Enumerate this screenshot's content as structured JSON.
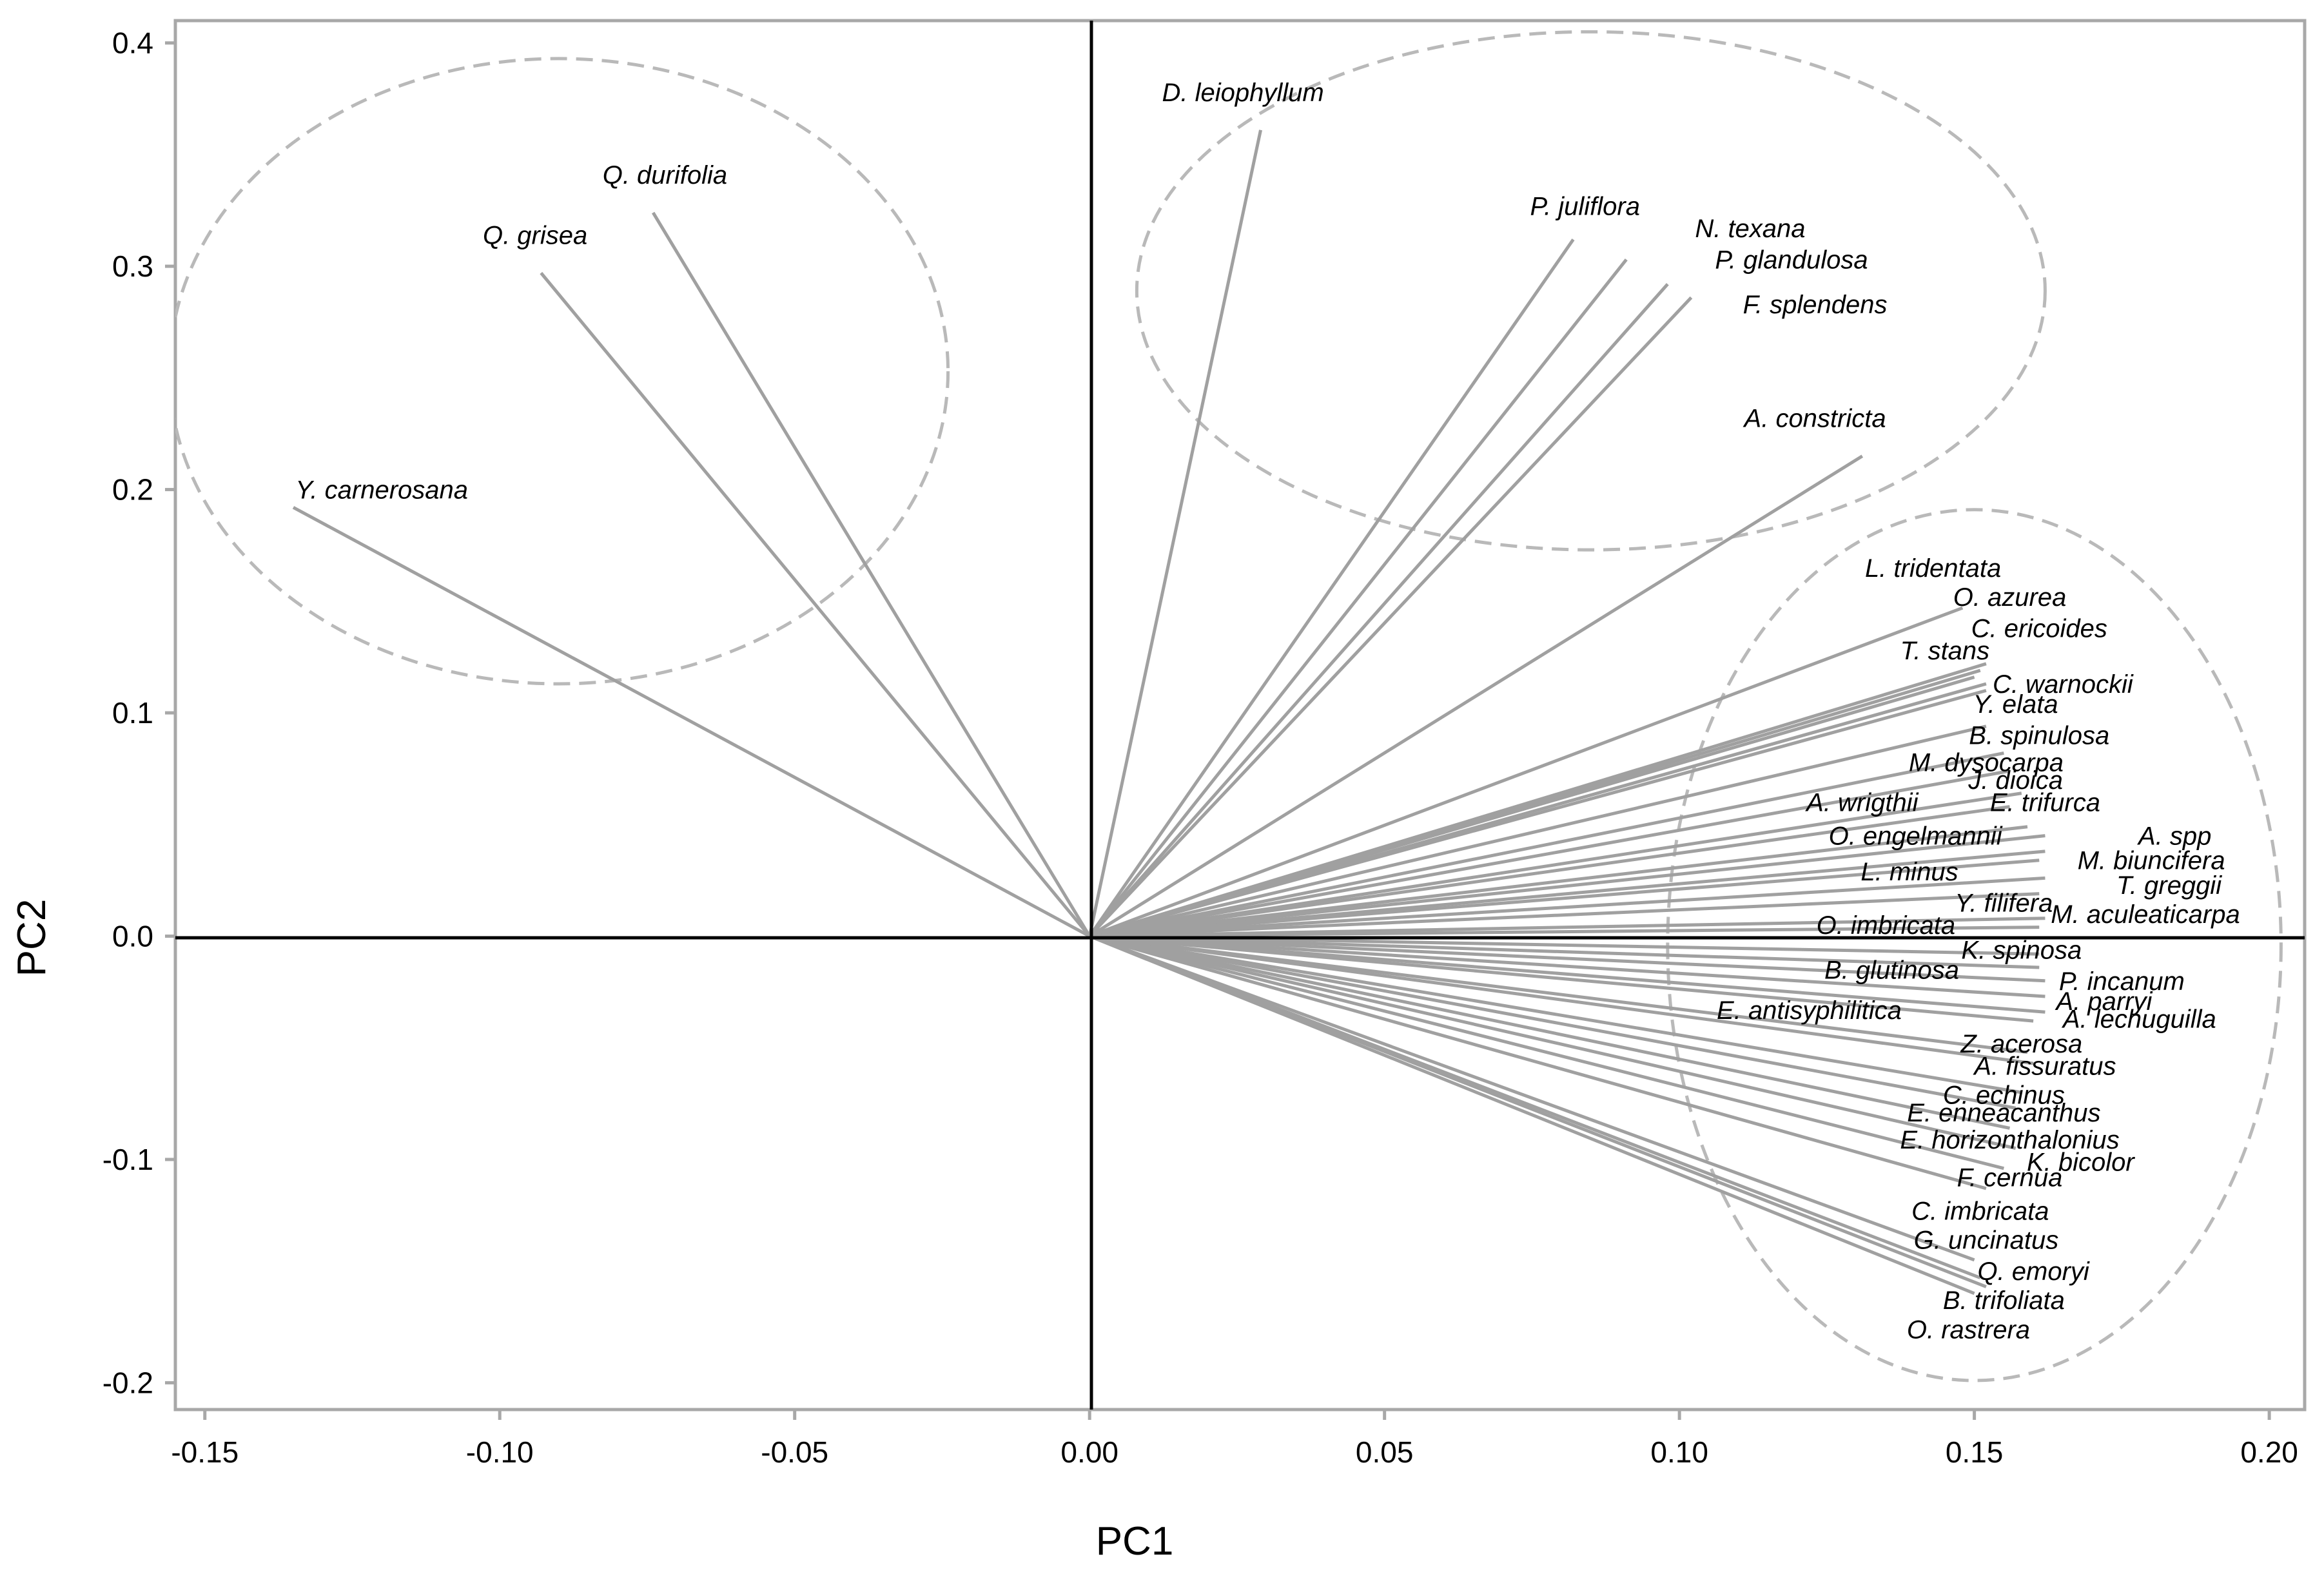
{
  "chart_data": {
    "type": "biplot",
    "title": "",
    "xlabel": "PC1",
    "ylabel": "PC2",
    "xlim": [
      -0.155,
      0.206
    ],
    "ylim": [
      -0.212,
      0.41
    ],
    "xticks": [
      "-0.15",
      "-0.10",
      "-0.05",
      "0.00",
      "0.05",
      "0.10",
      "0.15",
      "0.20"
    ],
    "yticks": [
      "-0.2",
      "-0.1",
      "0.0",
      "0.1",
      "0.2",
      "0.3",
      "0.4"
    ],
    "xtick_values": [
      -0.15,
      -0.1,
      -0.05,
      0.0,
      0.05,
      0.1,
      0.15,
      0.2
    ],
    "ytick_values": [
      -0.2,
      -0.1,
      0.0,
      0.1,
      0.2,
      0.3,
      0.4
    ],
    "vector_color": "#a0a0a0",
    "ellipse_color": "#b9b9b9",
    "vectors": [
      {
        "label": "Y. carnerosana",
        "x": -0.135,
        "y": 0.192,
        "lx": -0.12,
        "ly": 0.2
      },
      {
        "label": "Q. grisea",
        "x": -0.093,
        "y": 0.297,
        "lx": -0.094,
        "ly": 0.314
      },
      {
        "label": "Q. durifolia",
        "x": -0.074,
        "y": 0.324,
        "lx": -0.072,
        "ly": 0.341
      },
      {
        "label": "D. leiophyllum",
        "x": 0.029,
        "y": 0.361,
        "lx": 0.026,
        "ly": 0.378
      },
      {
        "label": "P. juliflora",
        "x": 0.082,
        "y": 0.312,
        "lx": 0.084,
        "ly": 0.327
      },
      {
        "label": "N. texana",
        "x": 0.091,
        "y": 0.303,
        "lx": 0.112,
        "ly": 0.317
      },
      {
        "label": "P. glandulosa",
        "x": 0.098,
        "y": 0.292,
        "lx": 0.119,
        "ly": 0.303
      },
      {
        "label": "F. splendens",
        "x": 0.102,
        "y": 0.286,
        "lx": 0.123,
        "ly": 0.283
      },
      {
        "label": "A. constricta",
        "x": 0.131,
        "y": 0.215,
        "lx": 0.123,
        "ly": 0.232
      },
      {
        "label": "L. tridentata",
        "x": 0.148,
        "y": 0.147,
        "lx": 0.143,
        "ly": 0.165
      },
      {
        "label": "O. azurea",
        "x": 0.152,
        "y": 0.122,
        "lx": 0.156,
        "ly": 0.152
      },
      {
        "label": "C. ericoides",
        "x": 0.151,
        "y": 0.119,
        "lx": 0.161,
        "ly": 0.138
      },
      {
        "label": "T. stans",
        "x": 0.15,
        "y": 0.116,
        "lx": 0.145,
        "ly": 0.128
      },
      {
        "label": "C. warnockii",
        "x": 0.152,
        "y": 0.113,
        "lx": 0.165,
        "ly": 0.113
      },
      {
        "label": "Y. elata",
        "x": 0.152,
        "y": 0.11,
        "lx": 0.157,
        "ly": 0.104
      },
      {
        "label": "B. spinulosa",
        "x": 0.152,
        "y": 0.094,
        "lx": 0.161,
        "ly": 0.09
      },
      {
        "label": "M. dysocarpa",
        "x": 0.155,
        "y": 0.082,
        "lx": 0.152,
        "ly": 0.078
      },
      {
        "label": "J. dioica",
        "x": 0.156,
        "y": 0.074,
        "lx": 0.157,
        "ly": 0.07
      },
      {
        "label": "E. trifurca",
        "x": 0.158,
        "y": 0.064,
        "lx": 0.162,
        "ly": 0.06
      },
      {
        "label": "A. wrigthii",
        "x": 0.156,
        "y": 0.058,
        "lx": 0.131,
        "ly": 0.06
      },
      {
        "label": "O. engelmannii",
        "x": 0.159,
        "y": 0.049,
        "lx": 0.14,
        "ly": 0.045
      },
      {
        "label": "A. spp",
        "x": 0.162,
        "y": 0.045,
        "lx": 0.184,
        "ly": 0.045
      },
      {
        "label": "M. biuncifera",
        "x": 0.162,
        "y": 0.038,
        "lx": 0.18,
        "ly": 0.034
      },
      {
        "label": "L. minus",
        "x": 0.161,
        "y": 0.034,
        "lx": 0.139,
        "ly": 0.029
      },
      {
        "label": "T. greggii",
        "x": 0.162,
        "y": 0.026,
        "lx": 0.183,
        "ly": 0.023
      },
      {
        "label": "Y. filifera",
        "x": 0.161,
        "y": 0.019,
        "lx": 0.155,
        "ly": 0.015
      },
      {
        "label": "M. aculeaticarpa",
        "x": 0.162,
        "y": 0.008,
        "lx": 0.179,
        "ly": 0.01
      },
      {
        "label": "O. imbricata",
        "x": 0.161,
        "y": 0.004,
        "lx": 0.135,
        "ly": 0.005
      },
      {
        "label": "K. spinosa",
        "x": 0.161,
        "y": -0.008,
        "lx": 0.158,
        "ly": -0.006
      },
      {
        "label": "B. glutinosa",
        "x": 0.161,
        "y": -0.014,
        "lx": 0.136,
        "ly": -0.015
      },
      {
        "label": "P. incanum",
        "x": 0.162,
        "y": -0.02,
        "lx": 0.175,
        "ly": -0.02
      },
      {
        "label": "A. parryi",
        "x": 0.162,
        "y": -0.027,
        "lx": 0.172,
        "ly": -0.029
      },
      {
        "label": "A. lechuguilla",
        "x": 0.162,
        "y": -0.034,
        "lx": 0.178,
        "ly": -0.037
      },
      {
        "label": "E. antisyphilitica",
        "x": 0.16,
        "y": -0.038,
        "lx": 0.122,
        "ly": -0.033
      },
      {
        "label": "Z. acerosa",
        "x": 0.159,
        "y": -0.052,
        "lx": 0.158,
        "ly": -0.048
      },
      {
        "label": "A. fissuratus",
        "x": 0.16,
        "y": -0.057,
        "lx": 0.162,
        "ly": -0.058
      },
      {
        "label": "C. echinus",
        "x": 0.158,
        "y": -0.07,
        "lx": 0.155,
        "ly": -0.071
      },
      {
        "label": "E. enneacanthus",
        "x": 0.157,
        "y": -0.077,
        "lx": 0.155,
        "ly": -0.079
      },
      {
        "label": "E. horizonthalonius",
        "x": 0.156,
        "y": -0.086,
        "lx": 0.156,
        "ly": -0.091
      },
      {
        "label": "K. bicolor",
        "x": 0.157,
        "y": -0.095,
        "lx": 0.168,
        "ly": -0.101
      },
      {
        "label": "F. cernua",
        "x": 0.155,
        "y": -0.104,
        "lx": 0.156,
        "ly": -0.108
      },
      {
        "label": "C. imbricata",
        "x": 0.152,
        "y": -0.113,
        "lx": 0.151,
        "ly": -0.123
      },
      {
        "label": "G. uncinatus",
        "x": 0.15,
        "y": -0.145,
        "lx": 0.152,
        "ly": -0.136
      },
      {
        "label": "Q. emoryi",
        "x": 0.151,
        "y": -0.153,
        "lx": 0.16,
        "ly": -0.15
      },
      {
        "label": "B. trifoliata",
        "x": 0.152,
        "y": -0.157,
        "lx": 0.155,
        "ly": -0.163
      },
      {
        "label": "O. rastrera",
        "x": 0.15,
        "y": -0.16,
        "lx": 0.149,
        "ly": -0.176
      }
    ],
    "groups": [
      {
        "name": "group-1",
        "cx": -0.09,
        "cy": 0.253,
        "rx": 0.066,
        "ry": 0.14
      },
      {
        "name": "group-2",
        "cx": 0.085,
        "cy": 0.289,
        "rx": 0.077,
        "ry": 0.116
      },
      {
        "name": "group-3",
        "cx": 0.15,
        "cy": -0.004,
        "rx": 0.052,
        "ry": 0.195
      }
    ]
  }
}
